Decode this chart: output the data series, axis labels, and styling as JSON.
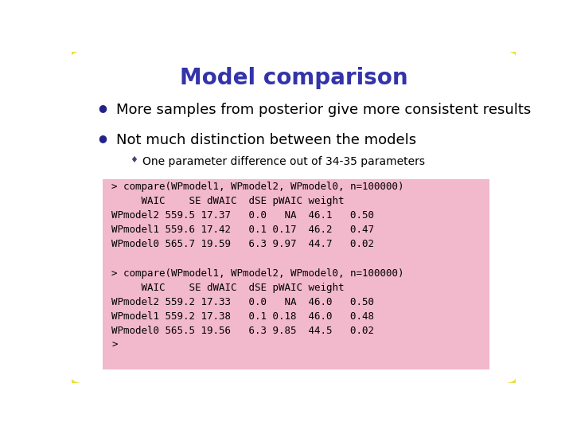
{
  "title": "Model comparison",
  "title_color": "#3333aa",
  "title_fontsize": 20,
  "bg_color": "#ffffff",
  "border_color": "#e8e040",
  "border_linewidth": 5,
  "bullet1": "More samples from posterior give more consistent results",
  "bullet2": "Not much distinction between the models",
  "sub_bullet": "One parameter difference out of 34-35 parameters",
  "bullet_color": "#000000",
  "bullet_fontsize": 13,
  "sub_bullet_fontsize": 10,
  "code_bg_color": "#f2b8cc",
  "code_text1": "> compare(WPmodel1, WPmodel2, WPmodel0, n=100000)\n     WAIC    SE dWAIC  dSE pWAIC weight\nWPmodel2 559.5 17.37   0.0   NA  46.1   0.50\nWPmodel1 559.6 17.42   0.1 0.17  46.2   0.47\nWPmodel0 565.7 19.59   6.3 9.97  44.7   0.02",
  "code_text2": "> compare(WPmodel1, WPmodel2, WPmodel0, n=100000)\n     WAIC    SE dWAIC  dSE pWAIC weight\nWPmodel2 559.2 17.33   0.0   NA  46.0   0.50\nWPmodel1 559.2 17.38   0.1 0.18  46.0   0.48\nWPmodel0 565.5 19.56   6.3 9.85  44.5   0.02\n>",
  "code_fontsize": 9,
  "bullet_marker": "●",
  "sub_marker": "♦",
  "bullet_marker_color": "#222288",
  "sub_marker_color": "#444477"
}
